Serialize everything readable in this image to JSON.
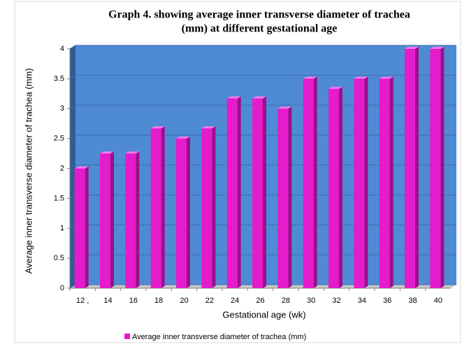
{
  "chart_data": {
    "type": "bar",
    "title": [
      "Graph 4. showing average inner transverse diameter of trachea",
      "(mm) at different gestational age"
    ],
    "x_label": "Gestational age (wk)",
    "y_label": "Average inner transverse diameter of trachea (mm)",
    "categories": [
      "12 ,",
      "14",
      "16",
      "18",
      "20",
      "22",
      "24",
      "26",
      "28",
      "30",
      "32",
      "34",
      "36",
      "38",
      "40"
    ],
    "series": [
      {
        "name": "Average inner transverse diameter of trachea (mm)",
        "color": "#e41ccb",
        "values": [
          2,
          2.25,
          2.25,
          2.67,
          2.5,
          2.67,
          3.17,
          3.17,
          3,
          3.5,
          3.33,
          3.5,
          3.5,
          4,
          4
        ]
      }
    ],
    "ylim": [
      0,
      4
    ],
    "yticks": [
      0,
      0.5,
      1,
      1.5,
      2,
      2.5,
      3,
      3.5,
      4
    ],
    "grid": true,
    "legend": "bottom"
  }
}
